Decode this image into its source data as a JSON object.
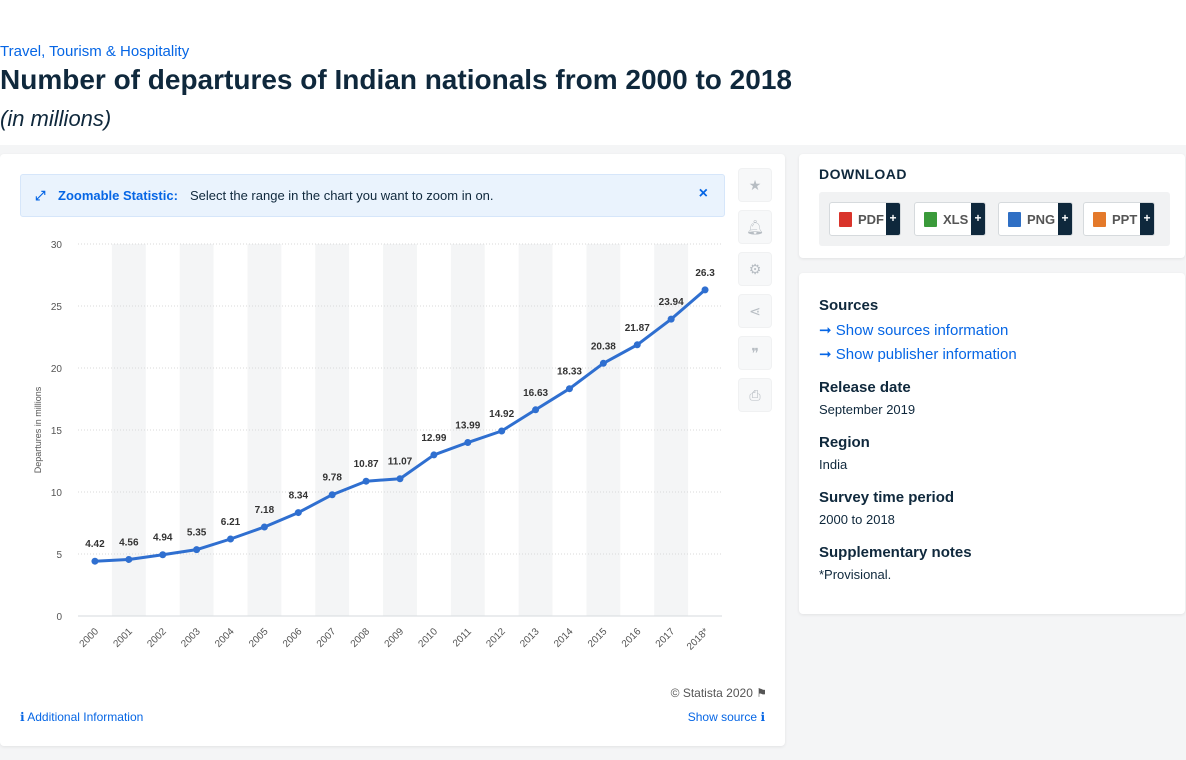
{
  "breadcrumb": "Travel, Tourism & Hospitality",
  "title": "Number of departures of Indian nationals from 2000 to 2018",
  "subtitle": "(in millions)",
  "zoom": {
    "label": "Zoomable Statistic:",
    "text": "Select the range in the chart you want to zoom in on.",
    "close": "×"
  },
  "copyright": "© Statista 2020",
  "additional_info": "Additional Information",
  "show_source": "Show source",
  "download": {
    "title": "DOWNLOAD",
    "buttons": [
      {
        "label": "PDF",
        "color": "#d9342b"
      },
      {
        "label": "XLS",
        "color": "#3a9a3a"
      },
      {
        "label": "PNG",
        "color": "#2f6fc4"
      },
      {
        "label": "PPT",
        "color": "#e4792a"
      }
    ],
    "plus": "+"
  },
  "info": {
    "sources_heading": "Sources",
    "sources_link": "Show sources information",
    "publisher_link": "Show publisher information",
    "release_heading": "Release date",
    "release_value": "September 2019",
    "region_heading": "Region",
    "region_value": "India",
    "period_heading": "Survey time period",
    "period_value": "2000 to 2018",
    "notes_heading": "Supplementary notes",
    "notes_value": "*Provisional."
  },
  "tools": [
    "star-icon",
    "bell-icon",
    "gear-icon",
    "share-icon",
    "quote-icon",
    "print-icon"
  ],
  "chart_data": {
    "type": "line",
    "categories": [
      "2000",
      "2001",
      "2002",
      "2003",
      "2004",
      "2005",
      "2006",
      "2007",
      "2008",
      "2009",
      "2010",
      "2011",
      "2012",
      "2013",
      "2014",
      "2015",
      "2016",
      "2017",
      "2018*"
    ],
    "values": [
      4.42,
      4.56,
      4.94,
      5.35,
      6.21,
      7.18,
      8.34,
      9.78,
      10.87,
      11.07,
      12.99,
      13.99,
      14.92,
      16.63,
      18.33,
      20.38,
      21.87,
      23.94,
      26.3
    ],
    "ylabel": "Departures in millions",
    "ylim": [
      0,
      30
    ],
    "yticks": [
      0,
      5,
      10,
      15,
      20,
      25,
      30
    ],
    "grid": true,
    "color": "#2f6fd0"
  }
}
